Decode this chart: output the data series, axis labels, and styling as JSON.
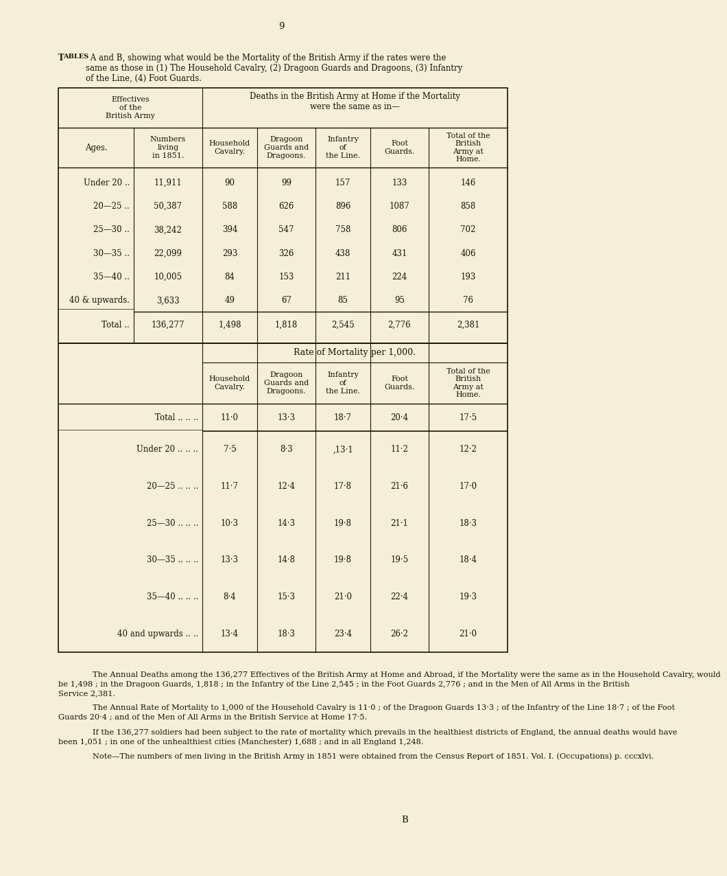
{
  "bg_color": "#f5eed8",
  "page_num": "9",
  "title_line1": "Tables A and B, showing what would be the Mortality of the British Army if the rates were the",
  "title_line2": "same as those in (1) The Household Cavalry, (2) Dragoon Guards and Dragoons, (3) Infantry",
  "title_line3": "of the Line, (4) Foot Guards.",
  "table_a_col_headers": [
    "Numbers\nliving\nin 1851.",
    "Household\nCavalry.",
    "Dragoon\nGuards and\nDragoons.",
    "Infantry\nof\nthe Line.",
    "Foot\nGuards.",
    "Total of the\nBritish\nArmy at\nHome."
  ],
  "table_a_rows": [
    [
      "Under 20 ..",
      "11,911",
      "90",
      "99",
      "157",
      "133",
      "146"
    ],
    [
      "20—25 ..",
      "50,387",
      "588",
      "626",
      "896",
      "1087",
      "858"
    ],
    [
      "25—30 ..",
      "38,242",
      "394",
      "547",
      "758",
      "806",
      "702"
    ],
    [
      "30—35 ..",
      "22,099",
      "293",
      "326",
      "438",
      "431",
      "406"
    ],
    [
      "35—40 ..",
      "10,005",
      "84",
      "153",
      "211",
      "224",
      "193"
    ],
    [
      "40 & upwards.",
      "3,633",
      "49",
      "67",
      "85",
      "95",
      "76"
    ]
  ],
  "table_a_total": [
    "Total ..",
    "136,277",
    "1,498",
    "1,818",
    "2,545",
    "2,776",
    "2,381"
  ],
  "table_b_header": "Rate of Mortality per 1,000.",
  "table_b_col_headers": [
    "Household\nCavalry.",
    "Dragoon\nGuards and\nDragoons.",
    "Infantry\nof\nthe Line.",
    "Foot\nGuards.",
    "Total of the\nBritish\nArmy at\nHome."
  ],
  "table_b_total": [
    "Total .. .. ..",
    "11·0",
    "13·3",
    "18·7",
    "20·4",
    "17·5"
  ],
  "table_b_rows": [
    [
      "Under 20 .. .. ..",
      "7·5",
      "8·3",
      ",13·1",
      "11·2",
      "12·2"
    ],
    [
      "20—25 .. .. ..",
      "11·7",
      "12·4",
      "17·8",
      "21·6",
      "17·0"
    ],
    [
      "25—30 .. .. ..",
      "10·3",
      "14·3",
      "19·8",
      "21·1",
      "18·3"
    ],
    [
      "30—35 .. .. ..",
      "13·3",
      "14·8",
      "19·8",
      "19·5",
      "18·4"
    ],
    [
      "35—40 .. .. ..",
      "8·4",
      "15·3",
      "21·0",
      "22·4",
      "19·3"
    ],
    [
      "40 and upwards .. ..",
      "13·4",
      "18·3",
      "23·4",
      "26·2",
      "21·0"
    ]
  ],
  "footer_para1": "The Annual Deaths among the 136,277 Effectives of the British Army at Home and Abroad, if the Mortality were the same as in the Household Cavalry, would be 1,498 ; in the Dragoon Guards, 1,818 ; in the Infantry of the Line 2,545 ; in the Foot Guards 2,776 ; and in the Men of All Arms in the British Service 2,381.",
  "footer_para2": "The Annual Rate of Mortality to 1,000 of the Household Cavalry is 11·0 ; of the Dragoon Guards 13·3 ; of the Infantry of the Line 18·7 ; of the Foot Guards 20·4 ; and of the Men of All Arms in the British Service at Home 17·5.",
  "footer_para3": "If the 136,277 soldiers had been subject to the rate of mortality which prevails in the healthiest districts of England, the annual deaths would have been 1,051 ; in one of the unhealthiest cities (Manchester) 1,688 ; and in all England 1,248.",
  "footer_note": "Note—The numbers of men living in the British Army in 1851 were obtained from the Census Report of 1851.  Vol. I. (Occupations) p. cccxlvi.",
  "page_num_bottom": "B"
}
